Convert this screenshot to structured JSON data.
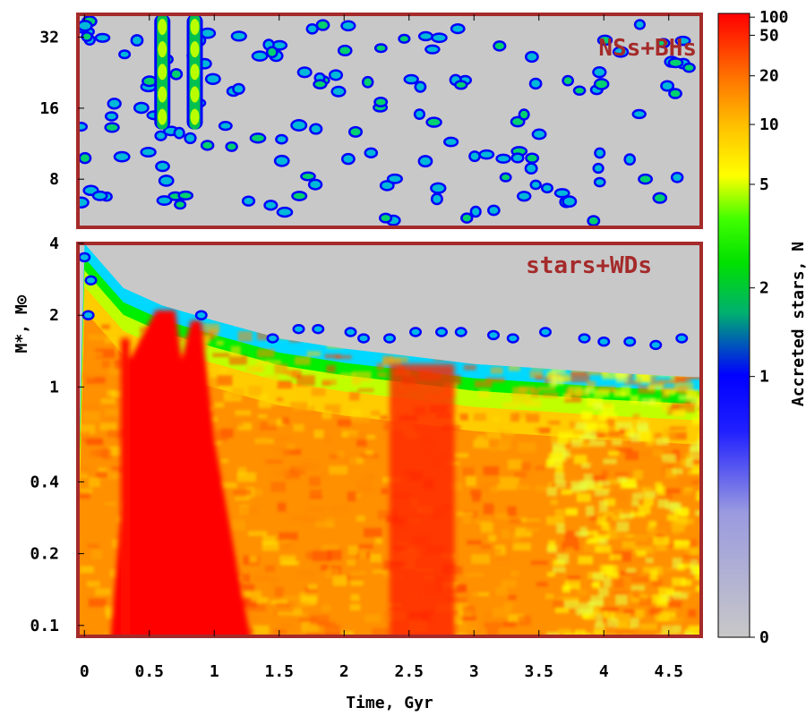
{
  "chart_data": {
    "type": "heatmap",
    "xlabel": "Time, Gyr",
    "ylabel": "M*, M⊙",
    "xlim": [
      -0.05,
      4.75
    ],
    "x_ticks": [
      "0",
      "0.5",
      "1",
      "1.5",
      "2",
      "2.5",
      "3",
      "3.5",
      "4",
      "4.5"
    ],
    "colorbar": {
      "label": "Accreted stars, N",
      "scale": "log",
      "range": [
        0,
        120
      ],
      "ticks": [
        "0",
        "1",
        "2",
        "5",
        "10",
        "20",
        "50",
        "100"
      ],
      "colors": [
        "#c8c8c8",
        "#0000ff",
        "#00cc44",
        "#00ff00",
        "#ffff00",
        "#ff8800",
        "#ff0000"
      ]
    },
    "panels": [
      {
        "name": "NSs+BHs",
        "scale": "log",
        "ylim": [
          5,
          40
        ],
        "y_ticks": [
          "8",
          "16",
          "32"
        ],
        "background": "gray, N=0",
        "streaks": [
          {
            "t": 0.6,
            "m_range": [
              13,
              40
            ],
            "N": "1-5"
          },
          {
            "t": 0.85,
            "m_range": [
              13,
              40
            ],
            "N": "1-5"
          }
        ],
        "description": "sparse isolated blobs with N about 1 across 0-4.7 Gyr"
      },
      {
        "name": "stars+WDs",
        "scale": "log",
        "ylim": [
          0.09,
          4
        ],
        "y_ticks": [
          "0.1",
          "0.2",
          "0.4",
          "1",
          "2",
          "4"
        ],
        "upper_envelope": [
          {
            "t": 0.0,
            "m": 4.0
          },
          {
            "t": 0.3,
            "m": 2.6
          },
          {
            "t": 0.6,
            "m": 2.2
          },
          {
            "t": 1.0,
            "m": 1.9
          },
          {
            "t": 1.5,
            "m": 1.6
          },
          {
            "t": 2.0,
            "m": 1.45
          },
          {
            "t": 2.5,
            "m": 1.35
          },
          {
            "t": 3.0,
            "m": 1.25
          },
          {
            "t": 3.5,
            "m": 1.2
          },
          {
            "t": 4.0,
            "m": 1.15
          },
          {
            "t": 4.7,
            "m": 1.1
          }
        ],
        "high_density_bands": [
          {
            "t_range": [
              0.2,
              1.2
            ],
            "N": ">100"
          },
          {
            "t_range": [
              2.35,
              2.85
            ],
            "N": "50-100"
          }
        ],
        "background_N": "20-50 below envelope, decreasing to 10-20 after 3.6 Gyr"
      }
    ]
  }
}
